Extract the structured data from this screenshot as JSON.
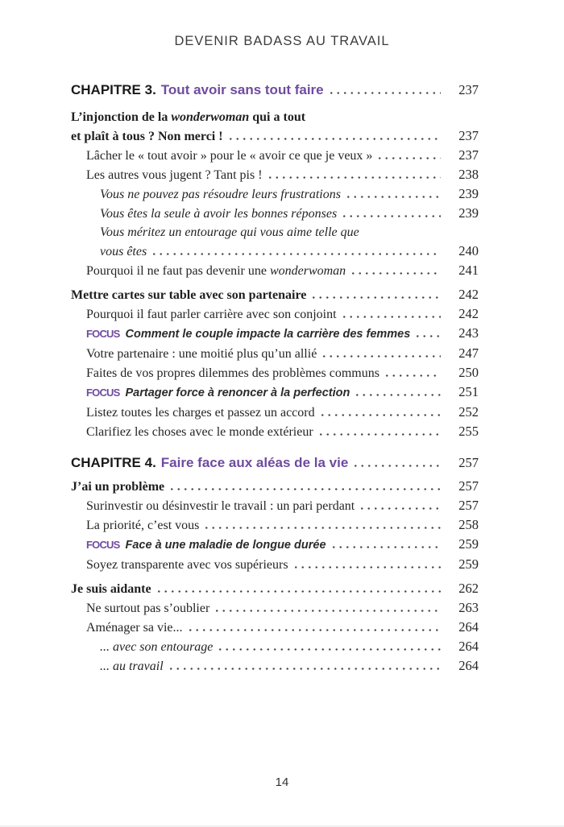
{
  "running_head": "DEVENIR BADASS AU TRAVAIL",
  "folio_page_number": "14",
  "colors": {
    "accent_purple": "#6f4b9f",
    "body_text": "#242424",
    "dot_leader": "#4a4a4a"
  },
  "toc": {
    "entries": [
      {
        "kind": "chapter",
        "gap": "none",
        "page": "237",
        "segments": [
          {
            "style": "chapter-num",
            "text": "CHAPITRE 3."
          },
          {
            "style": "chapter-title",
            "text": "Tout avoir sans tout faire"
          }
        ]
      },
      {
        "kind": "heading",
        "gap": "md",
        "page": null,
        "segments": [
          {
            "style": "bold",
            "text": "L’injonction de la "
          },
          {
            "style": "bold-italic",
            "text": "wonderwoman"
          },
          {
            "style": "bold",
            "text": " qui a tout"
          }
        ]
      },
      {
        "kind": "heading",
        "gap": "none",
        "page": "237",
        "segments": [
          {
            "style": "bold",
            "text": "et plaît à tous ? Non merci !"
          }
        ]
      },
      {
        "kind": "sub",
        "gap": "none",
        "page": "237",
        "segments": [
          {
            "style": "plain",
            "text": "Lâcher le « tout avoir » pour le « avoir ce que je veux »"
          }
        ]
      },
      {
        "kind": "sub",
        "gap": "none",
        "page": "238",
        "segments": [
          {
            "style": "plain",
            "text": "Les autres vous jugent ? Tant pis !"
          }
        ]
      },
      {
        "kind": "subsub",
        "gap": "none",
        "page": "239",
        "segments": [
          {
            "style": "italic",
            "text": "Vous ne pouvez pas résoudre leurs frustrations"
          }
        ]
      },
      {
        "kind": "subsub",
        "gap": "none",
        "page": "239",
        "segments": [
          {
            "style": "italic",
            "text": "Vous êtes la seule à avoir les bonnes réponses"
          }
        ]
      },
      {
        "kind": "subsub",
        "gap": "none",
        "page": null,
        "segments": [
          {
            "style": "italic",
            "text": "Vous méritez un entourage qui vous aime telle que"
          }
        ]
      },
      {
        "kind": "subsub",
        "gap": "none",
        "page": "240",
        "segments": [
          {
            "style": "italic",
            "text": "vous êtes"
          }
        ]
      },
      {
        "kind": "sub",
        "gap": "none",
        "page": "241",
        "segments": [
          {
            "style": "plain",
            "text": "Pourquoi il ne faut pas devenir une "
          },
          {
            "style": "italic",
            "text": "wonderwoman"
          }
        ]
      },
      {
        "kind": "heading",
        "gap": "sm",
        "page": "242",
        "segments": [
          {
            "style": "bold",
            "text": "Mettre cartes sur table avec son partenaire"
          }
        ]
      },
      {
        "kind": "sub",
        "gap": "none",
        "page": "242",
        "segments": [
          {
            "style": "plain",
            "text": "Pourquoi il faut parler carrière avec son conjoint"
          }
        ]
      },
      {
        "kind": "focus",
        "gap": "none",
        "page": "243",
        "segments": [
          {
            "style": "focus-label",
            "text": "FOCUS"
          },
          {
            "style": "focus-text",
            "text": "Comment le couple impacte la carrière des femmes"
          }
        ]
      },
      {
        "kind": "sub",
        "gap": "none",
        "page": "247",
        "segments": [
          {
            "style": "plain",
            "text": "Votre partenaire : une moitié plus qu’un allié"
          }
        ]
      },
      {
        "kind": "sub",
        "gap": "none",
        "page": "250",
        "segments": [
          {
            "style": "plain",
            "text": "Faites de vos propres dilemmes des problèmes communs"
          }
        ]
      },
      {
        "kind": "focus",
        "gap": "none",
        "page": "251",
        "segments": [
          {
            "style": "focus-label",
            "text": "FOCUS"
          },
          {
            "style": "focus-text",
            "text": "Partager force à renoncer à la perfection"
          }
        ]
      },
      {
        "kind": "sub",
        "gap": "none",
        "page": "252",
        "segments": [
          {
            "style": "plain",
            "text": "Listez toutes les charges et passez un accord"
          }
        ]
      },
      {
        "kind": "sub",
        "gap": "none",
        "page": "255",
        "segments": [
          {
            "style": "plain",
            "text": "Clarifiez les choses avec le monde extérieur"
          }
        ]
      },
      {
        "kind": "chapter",
        "gap": "lg",
        "page": "257",
        "segments": [
          {
            "style": "chapter-num",
            "text": "CHAPITRE 4."
          },
          {
            "style": "chapter-title",
            "text": "Faire face aux aléas de la vie"
          }
        ]
      },
      {
        "kind": "heading",
        "gap": "sm",
        "page": "257",
        "segments": [
          {
            "style": "bold",
            "text": "J’ai un problème"
          }
        ]
      },
      {
        "kind": "sub",
        "gap": "none",
        "page": "257",
        "segments": [
          {
            "style": "plain",
            "text": "Surinvestir ou désinvestir le travail : un pari perdant"
          }
        ]
      },
      {
        "kind": "sub",
        "gap": "none",
        "page": "258",
        "segments": [
          {
            "style": "plain",
            "text": "La priorité, c’est vous"
          }
        ]
      },
      {
        "kind": "focus",
        "gap": "none",
        "page": "259",
        "segments": [
          {
            "style": "focus-label",
            "text": "FOCUS"
          },
          {
            "style": "focus-text",
            "text": "Face à une maladie de longue durée"
          }
        ]
      },
      {
        "kind": "sub",
        "gap": "none",
        "page": "259",
        "segments": [
          {
            "style": "plain",
            "text": "Soyez transparente avec vos supérieurs"
          }
        ]
      },
      {
        "kind": "heading",
        "gap": "sm",
        "page": "262",
        "segments": [
          {
            "style": "bold",
            "text": "Je suis aidante"
          }
        ]
      },
      {
        "kind": "sub",
        "gap": "none",
        "page": "263",
        "segments": [
          {
            "style": "plain",
            "text": "Ne surtout pas s’oublier"
          }
        ]
      },
      {
        "kind": "sub",
        "gap": "none",
        "page": "264",
        "segments": [
          {
            "style": "plain",
            "text": "Aménager sa vie..."
          }
        ]
      },
      {
        "kind": "subsub",
        "gap": "none",
        "page": "264",
        "segments": [
          {
            "style": "italic",
            "text": "... avec son entourage"
          }
        ]
      },
      {
        "kind": "subsub",
        "gap": "none",
        "page": "264",
        "segments": [
          {
            "style": "italic",
            "text": "... au travail"
          }
        ]
      }
    ]
  }
}
